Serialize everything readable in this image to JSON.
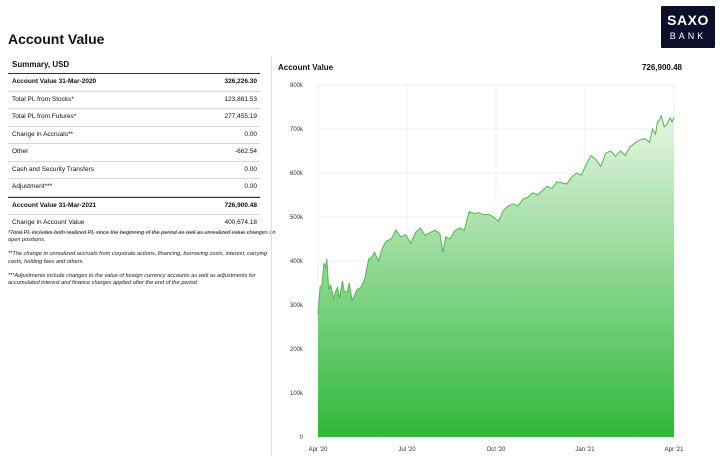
{
  "page": {
    "title": "Account Value"
  },
  "logo": {
    "line1": "SAXO",
    "line2": "BANK"
  },
  "summary": {
    "header": "Summary, USD",
    "rows": [
      {
        "label": "Account Value 31-Mar-2020",
        "value": "326,226.30"
      },
      {
        "label": "Total PL from Stocks*",
        "value": "123,881.53"
      },
      {
        "label": "Total PL from Futures*",
        "value": "277,455.19"
      },
      {
        "label": "Change in Accruals**",
        "value": "0.00"
      },
      {
        "label": "Other",
        "value": "-662.54"
      },
      {
        "label": "Cash and Security Transfers",
        "value": "0.00"
      },
      {
        "label": "Adjustment***",
        "value": "0.00"
      },
      {
        "label": "Account Value 31-Mar-2021",
        "value": "726,900.48"
      },
      {
        "label": "Change in Account Value",
        "value": "400,674.18"
      }
    ]
  },
  "notes": {
    "n1": "*Total PL includes both realized PL  since the beginning of the period as well as unrealized value changes on open positions.",
    "n2": "**The change in unrealized accruals from corporate actions, financing, borrowing costs, interest, carrying costs, holding fees and others.",
    "n3": "***Adjustments include changes to the value of foreign currency accounts as well as adjustments for accumulated interest and finance charges applied after the end of the period."
  },
  "chart_header": {
    "title": "Account Value",
    "value": "726,900.48"
  },
  "colors": {
    "logo_bg": "#0b0f2b",
    "line": "#52b552",
    "fill_top": "#e6f5e3",
    "fill_bottom": "#2fb83a"
  },
  "chart_data": {
    "type": "area",
    "title": "Account Value",
    "y_unit": "USD",
    "ylim": [
      0,
      800000
    ],
    "yticks": [
      "0",
      "100k",
      "200k",
      "300k",
      "400k",
      "500k",
      "600k",
      "700k",
      "800k"
    ],
    "x_ticks": [
      "Apr '20",
      "Jul '20",
      "Oct '20",
      "Jan '21",
      "Apr '21"
    ],
    "x_range_days": [
      0,
      365
    ],
    "grid": true,
    "series": [
      {
        "x": [
          0,
          2,
          4,
          6,
          8,
          9,
          11,
          13,
          16,
          18,
          20,
          22,
          25,
          27,
          30,
          32,
          35,
          37,
          40,
          44,
          48,
          52,
          55,
          58,
          62,
          66,
          70,
          75,
          80,
          85,
          90,
          95,
          100,
          105,
          110,
          115,
          120,
          125,
          128,
          131,
          135,
          140,
          145,
          150,
          155,
          160,
          165,
          170,
          175,
          180,
          185,
          190,
          195,
          200,
          205,
          210,
          215,
          220,
          225,
          230,
          235,
          240,
          245,
          250,
          255,
          260,
          265,
          270,
          275,
          280,
          285,
          290,
          295,
          300,
          305,
          310,
          315,
          320,
          325,
          330,
          335,
          340,
          343,
          346,
          348,
          350,
          352,
          355,
          358,
          361,
          363,
          365
        ],
        "y": [
          280000,
          340000,
          345000,
          395000,
          385000,
          405000,
          335000,
          345000,
          315000,
          330000,
          340000,
          315000,
          355000,
          330000,
          330000,
          350000,
          310000,
          320000,
          335000,
          340000,
          360000,
          405000,
          408000,
          420000,
          400000,
          430000,
          445000,
          450000,
          470000,
          455000,
          460000,
          440000,
          465000,
          475000,
          458000,
          465000,
          470000,
          462000,
          420000,
          455000,
          450000,
          468000,
          475000,
          470000,
          512000,
          508000,
          510000,
          505000,
          506000,
          500000,
          490000,
          515000,
          525000,
          530000,
          525000,
          540000,
          545000,
          555000,
          550000,
          560000,
          570000,
          565000,
          580000,
          578000,
          575000,
          590000,
          600000,
          595000,
          620000,
          640000,
          630000,
          615000,
          645000,
          650000,
          638000,
          650000,
          640000,
          660000,
          668000,
          675000,
          678000,
          670000,
          700000,
          688000,
          715000,
          720000,
          730000,
          705000,
          712000,
          725000,
          716000,
          726900
        ]
      }
    ]
  }
}
